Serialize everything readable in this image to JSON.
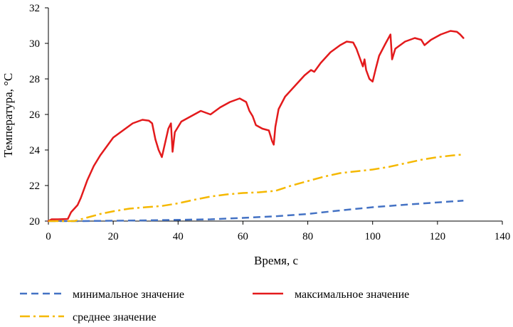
{
  "chart_data": {
    "type": "line",
    "title": "",
    "xlabel": "Время, с",
    "ylabel": "Температура, °С",
    "xlim": [
      0,
      140
    ],
    "ylim": [
      20,
      32
    ],
    "x_ticks": [
      0,
      20,
      40,
      60,
      80,
      100,
      120,
      140
    ],
    "y_ticks": [
      20,
      22,
      24,
      26,
      28,
      30,
      32
    ],
    "grid": false,
    "legend_position": "bottom",
    "series": [
      {
        "name": "минимальное значение",
        "color": "#4472C4",
        "style": "dashed",
        "points": [
          [
            0,
            20.0
          ],
          [
            10,
            20.0
          ],
          [
            20,
            20.02
          ],
          [
            30,
            20.04
          ],
          [
            40,
            20.07
          ],
          [
            50,
            20.1
          ],
          [
            60,
            20.18
          ],
          [
            70,
            20.27
          ],
          [
            80,
            20.4
          ],
          [
            90,
            20.6
          ],
          [
            100,
            20.78
          ],
          [
            110,
            20.92
          ],
          [
            120,
            21.05
          ],
          [
            128,
            21.15
          ]
        ]
      },
      {
        "name": "максимальное значение",
        "color": "#E31A1C",
        "style": "solid",
        "points": [
          [
            0,
            20.0
          ],
          [
            1,
            20.1
          ],
          [
            3,
            20.1
          ],
          [
            6,
            20.12
          ],
          [
            7,
            20.5
          ],
          [
            9,
            20.9
          ],
          [
            10,
            21.3
          ],
          [
            12,
            22.3
          ],
          [
            14,
            23.1
          ],
          [
            16,
            23.7
          ],
          [
            18,
            24.2
          ],
          [
            20,
            24.7
          ],
          [
            23,
            25.1
          ],
          [
            26,
            25.5
          ],
          [
            29,
            25.7
          ],
          [
            31,
            25.65
          ],
          [
            32,
            25.5
          ],
          [
            33,
            24.6
          ],
          [
            34,
            24.0
          ],
          [
            35,
            23.6
          ],
          [
            36,
            24.4
          ],
          [
            37,
            25.2
          ],
          [
            37.8,
            25.5
          ],
          [
            38.3,
            23.9
          ],
          [
            39,
            25.0
          ],
          [
            41,
            25.6
          ],
          [
            44,
            25.9
          ],
          [
            47,
            26.2
          ],
          [
            50,
            26.0
          ],
          [
            53,
            26.4
          ],
          [
            56,
            26.7
          ],
          [
            59,
            26.9
          ],
          [
            61,
            26.7
          ],
          [
            62,
            26.2
          ],
          [
            63,
            25.9
          ],
          [
            64,
            25.4
          ],
          [
            66,
            25.2
          ],
          [
            68,
            25.1
          ],
          [
            69,
            24.5
          ],
          [
            69.5,
            24.3
          ],
          [
            70,
            25.3
          ],
          [
            71,
            26.3
          ],
          [
            73,
            27.0
          ],
          [
            76,
            27.6
          ],
          [
            79,
            28.2
          ],
          [
            81,
            28.5
          ],
          [
            82,
            28.4
          ],
          [
            84,
            28.9
          ],
          [
            87,
            29.5
          ],
          [
            90,
            29.9
          ],
          [
            92,
            30.1
          ],
          [
            94,
            30.05
          ],
          [
            95,
            29.7
          ],
          [
            96,
            29.2
          ],
          [
            97,
            28.7
          ],
          [
            97.5,
            29.1
          ],
          [
            98,
            28.5
          ],
          [
            99,
            28.0
          ],
          [
            100,
            27.85
          ],
          [
            101,
            28.6
          ],
          [
            102,
            29.3
          ],
          [
            104,
            30.0
          ],
          [
            105.5,
            30.5
          ],
          [
            106,
            29.1
          ],
          [
            107,
            29.7
          ],
          [
            110,
            30.1
          ],
          [
            113,
            30.3
          ],
          [
            115,
            30.2
          ],
          [
            116,
            29.9
          ],
          [
            118,
            30.2
          ],
          [
            121,
            30.5
          ],
          [
            124,
            30.7
          ],
          [
            126,
            30.65
          ],
          [
            127,
            30.5
          ],
          [
            128,
            30.3
          ]
        ]
      },
      {
        "name": "среднее значение",
        "color": "#F5B800",
        "style": "dash-dot",
        "points": [
          [
            0,
            20.0
          ],
          [
            8,
            20.0
          ],
          [
            12,
            20.2
          ],
          [
            16,
            20.4
          ],
          [
            20,
            20.55
          ],
          [
            25,
            20.7
          ],
          [
            30,
            20.78
          ],
          [
            35,
            20.85
          ],
          [
            40,
            21.0
          ],
          [
            45,
            21.2
          ],
          [
            50,
            21.38
          ],
          [
            55,
            21.5
          ],
          [
            60,
            21.58
          ],
          [
            65,
            21.62
          ],
          [
            70,
            21.7
          ],
          [
            75,
            22.0
          ],
          [
            80,
            22.25
          ],
          [
            85,
            22.5
          ],
          [
            90,
            22.7
          ],
          [
            95,
            22.8
          ],
          [
            100,
            22.9
          ],
          [
            105,
            23.05
          ],
          [
            110,
            23.25
          ],
          [
            115,
            23.45
          ],
          [
            120,
            23.6
          ],
          [
            125,
            23.7
          ],
          [
            128,
            23.75
          ]
        ]
      }
    ]
  }
}
